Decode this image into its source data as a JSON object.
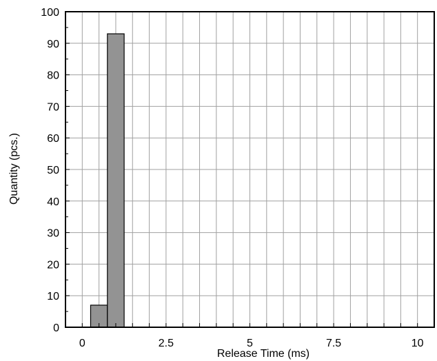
{
  "chart_data": {
    "type": "bar",
    "xlabel": "Release Time (ms)",
    "ylabel": "Quantity (pcs.)",
    "xlim": [
      -0.5,
      10.5
    ],
    "ylim": [
      0,
      100
    ],
    "x_ticks": [
      0,
      2.5,
      5,
      7.5,
      10
    ],
    "x_tick_labels": [
      "0",
      "2.5",
      "5",
      "7.5",
      "10"
    ],
    "y_ticks": [
      0,
      10,
      20,
      30,
      40,
      50,
      60,
      70,
      80,
      90,
      100
    ],
    "y_tick_labels": [
      "0",
      "10",
      "20",
      "30",
      "40",
      "50",
      "60",
      "70",
      "80",
      "90",
      "100"
    ],
    "x_minor_step": 0.5,
    "grid": true,
    "bin_width": 0.5,
    "bins": [
      {
        "x_start": 0.25,
        "x_end": 0.75,
        "value": 7
      },
      {
        "x_start": 0.75,
        "x_end": 1.25,
        "value": 93
      }
    ],
    "colors": {
      "bar_fill": "#939393",
      "bar_stroke": "#000000",
      "grid": "#a0a0a0",
      "axis": "#000000"
    }
  }
}
